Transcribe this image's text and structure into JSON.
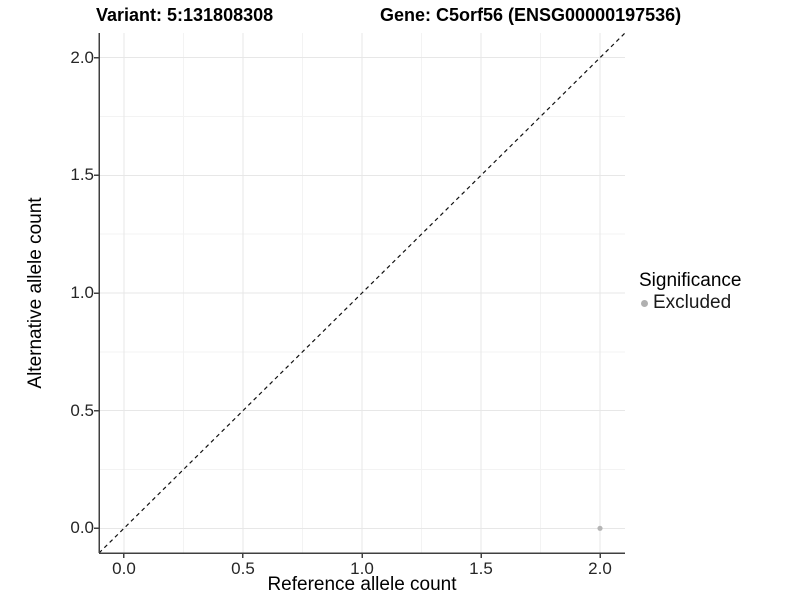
{
  "title": {
    "left": "Variant: 5:131808308",
    "right": "Gene: C5orf56 (ENSG00000197536)"
  },
  "axes": {
    "x_label": "Reference allele count",
    "y_label": "Alternative allele count"
  },
  "legend": {
    "title": "Significance",
    "entries": [
      {
        "label": "Excluded",
        "color": "#b0b0b0",
        "marker": "circle"
      }
    ]
  },
  "colors": {
    "background": "#ffffff",
    "grid_major": "#e7e7e7",
    "grid_minor": "#f3f3f3",
    "axis_line": "#404040",
    "tick_mark": "#404040",
    "tick_label": "#262626",
    "title_text": "#000000",
    "point": "#b5b5b5",
    "reference_line": "#111111"
  },
  "chart_data": {
    "type": "scatter",
    "title": "Variant: 5:131808308 / Gene: C5orf56 (ENSG00000197536)",
    "xlabel": "Reference allele count",
    "ylabel": "Alternative allele count",
    "xlim": [
      -0.105,
      2.105
    ],
    "ylim": [
      -0.105,
      2.105
    ],
    "x_major_ticks": [
      0,
      0.5,
      1,
      1.5,
      2
    ],
    "y_major_ticks": [
      0,
      0.5,
      1,
      1.5,
      2
    ],
    "x_tick_labels": [
      "0.0",
      "0.5",
      "1.0",
      "1.5",
      "2.0"
    ],
    "y_tick_labels": [
      "0.0",
      "0.5",
      "1.0",
      "1.5",
      "2.0"
    ],
    "x_minor_ticks": [
      0.25,
      0.75,
      1.25,
      1.75
    ],
    "y_minor_ticks": [
      0.25,
      0.75,
      1.25,
      1.75
    ],
    "grid": "major+minor",
    "legend_position": "right",
    "series": [
      {
        "name": "Excluded",
        "color": "#b5b5b5",
        "marker": "circle",
        "points": [
          {
            "x": 2.0,
            "y": 0.0
          }
        ]
      }
    ],
    "reference_line": {
      "kind": "identity y=x",
      "style": "dashed",
      "color": "#111111",
      "from": -0.105,
      "to": 2.105
    }
  }
}
